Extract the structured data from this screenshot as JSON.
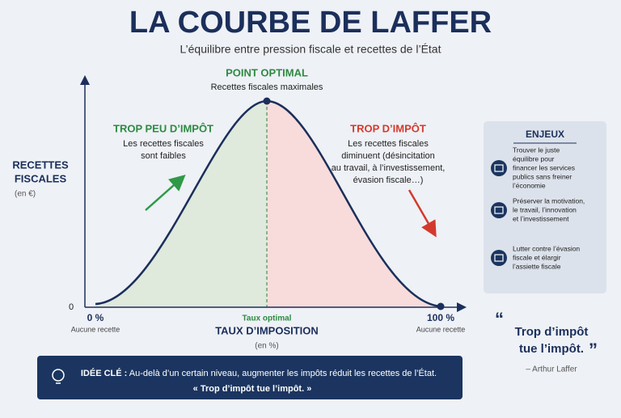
{
  "header": {
    "title": "LA COURBE DE LAFFER",
    "subtitle": "L’équilibre entre pression fiscale et recettes de l’État"
  },
  "y_axis": {
    "label_lines": [
      "RECETTES",
      "FISCALES"
    ],
    "unit": "(en €)",
    "origin": "0"
  },
  "x_axis": {
    "label": "TAUX D’IMPOSITION",
    "unit": "(en %)",
    "start": {
      "tick": "0 %",
      "note": "Aucune recette"
    },
    "optimal": "Taux optimal",
    "end": {
      "tick": "100 %",
      "note": "Aucune recette"
    }
  },
  "optimum": {
    "title": "POINT OPTIMAL",
    "text": "Recettes fiscales maximales"
  },
  "left_zone": {
    "title": "TROP PEU D’IMPÔT",
    "lines": [
      "Les recettes fiscales",
      "sont faibles"
    ]
  },
  "right_zone": {
    "title": "TROP D’IMPÔT",
    "lines": [
      "Les recettes fiscales",
      "diminuent (désincitation",
      "au travail, à l’investissement,",
      "évasion fiscale…)"
    ]
  },
  "enjeux": {
    "title": "ENJEUX",
    "items": [
      {
        "lines": [
          "Trouver le juste",
          "équilibre pour",
          "financer les services",
          "publics sans freiner",
          "l’économie"
        ]
      },
      {
        "lines": [
          "Préserver la motivation,",
          "le travail, l’innovation",
          "et l’investissement"
        ]
      },
      {
        "lines": [
          "Lutter contre l’évasion",
          "fiscale et élargir",
          "l’assiette fiscale"
        ]
      }
    ]
  },
  "quote": {
    "lines": [
      "Trop d’impôt",
      "tue l’impôt."
    ],
    "author": "– Arthur Laffer"
  },
  "key_idea": {
    "label": "IDÉE CLÉ :",
    "text": "Au-delà d’un certain niveau, augmenter les impôts réduit les recettes de l’État.",
    "quote": "« Trop d’impôt tue l’impôt. »"
  }
}
